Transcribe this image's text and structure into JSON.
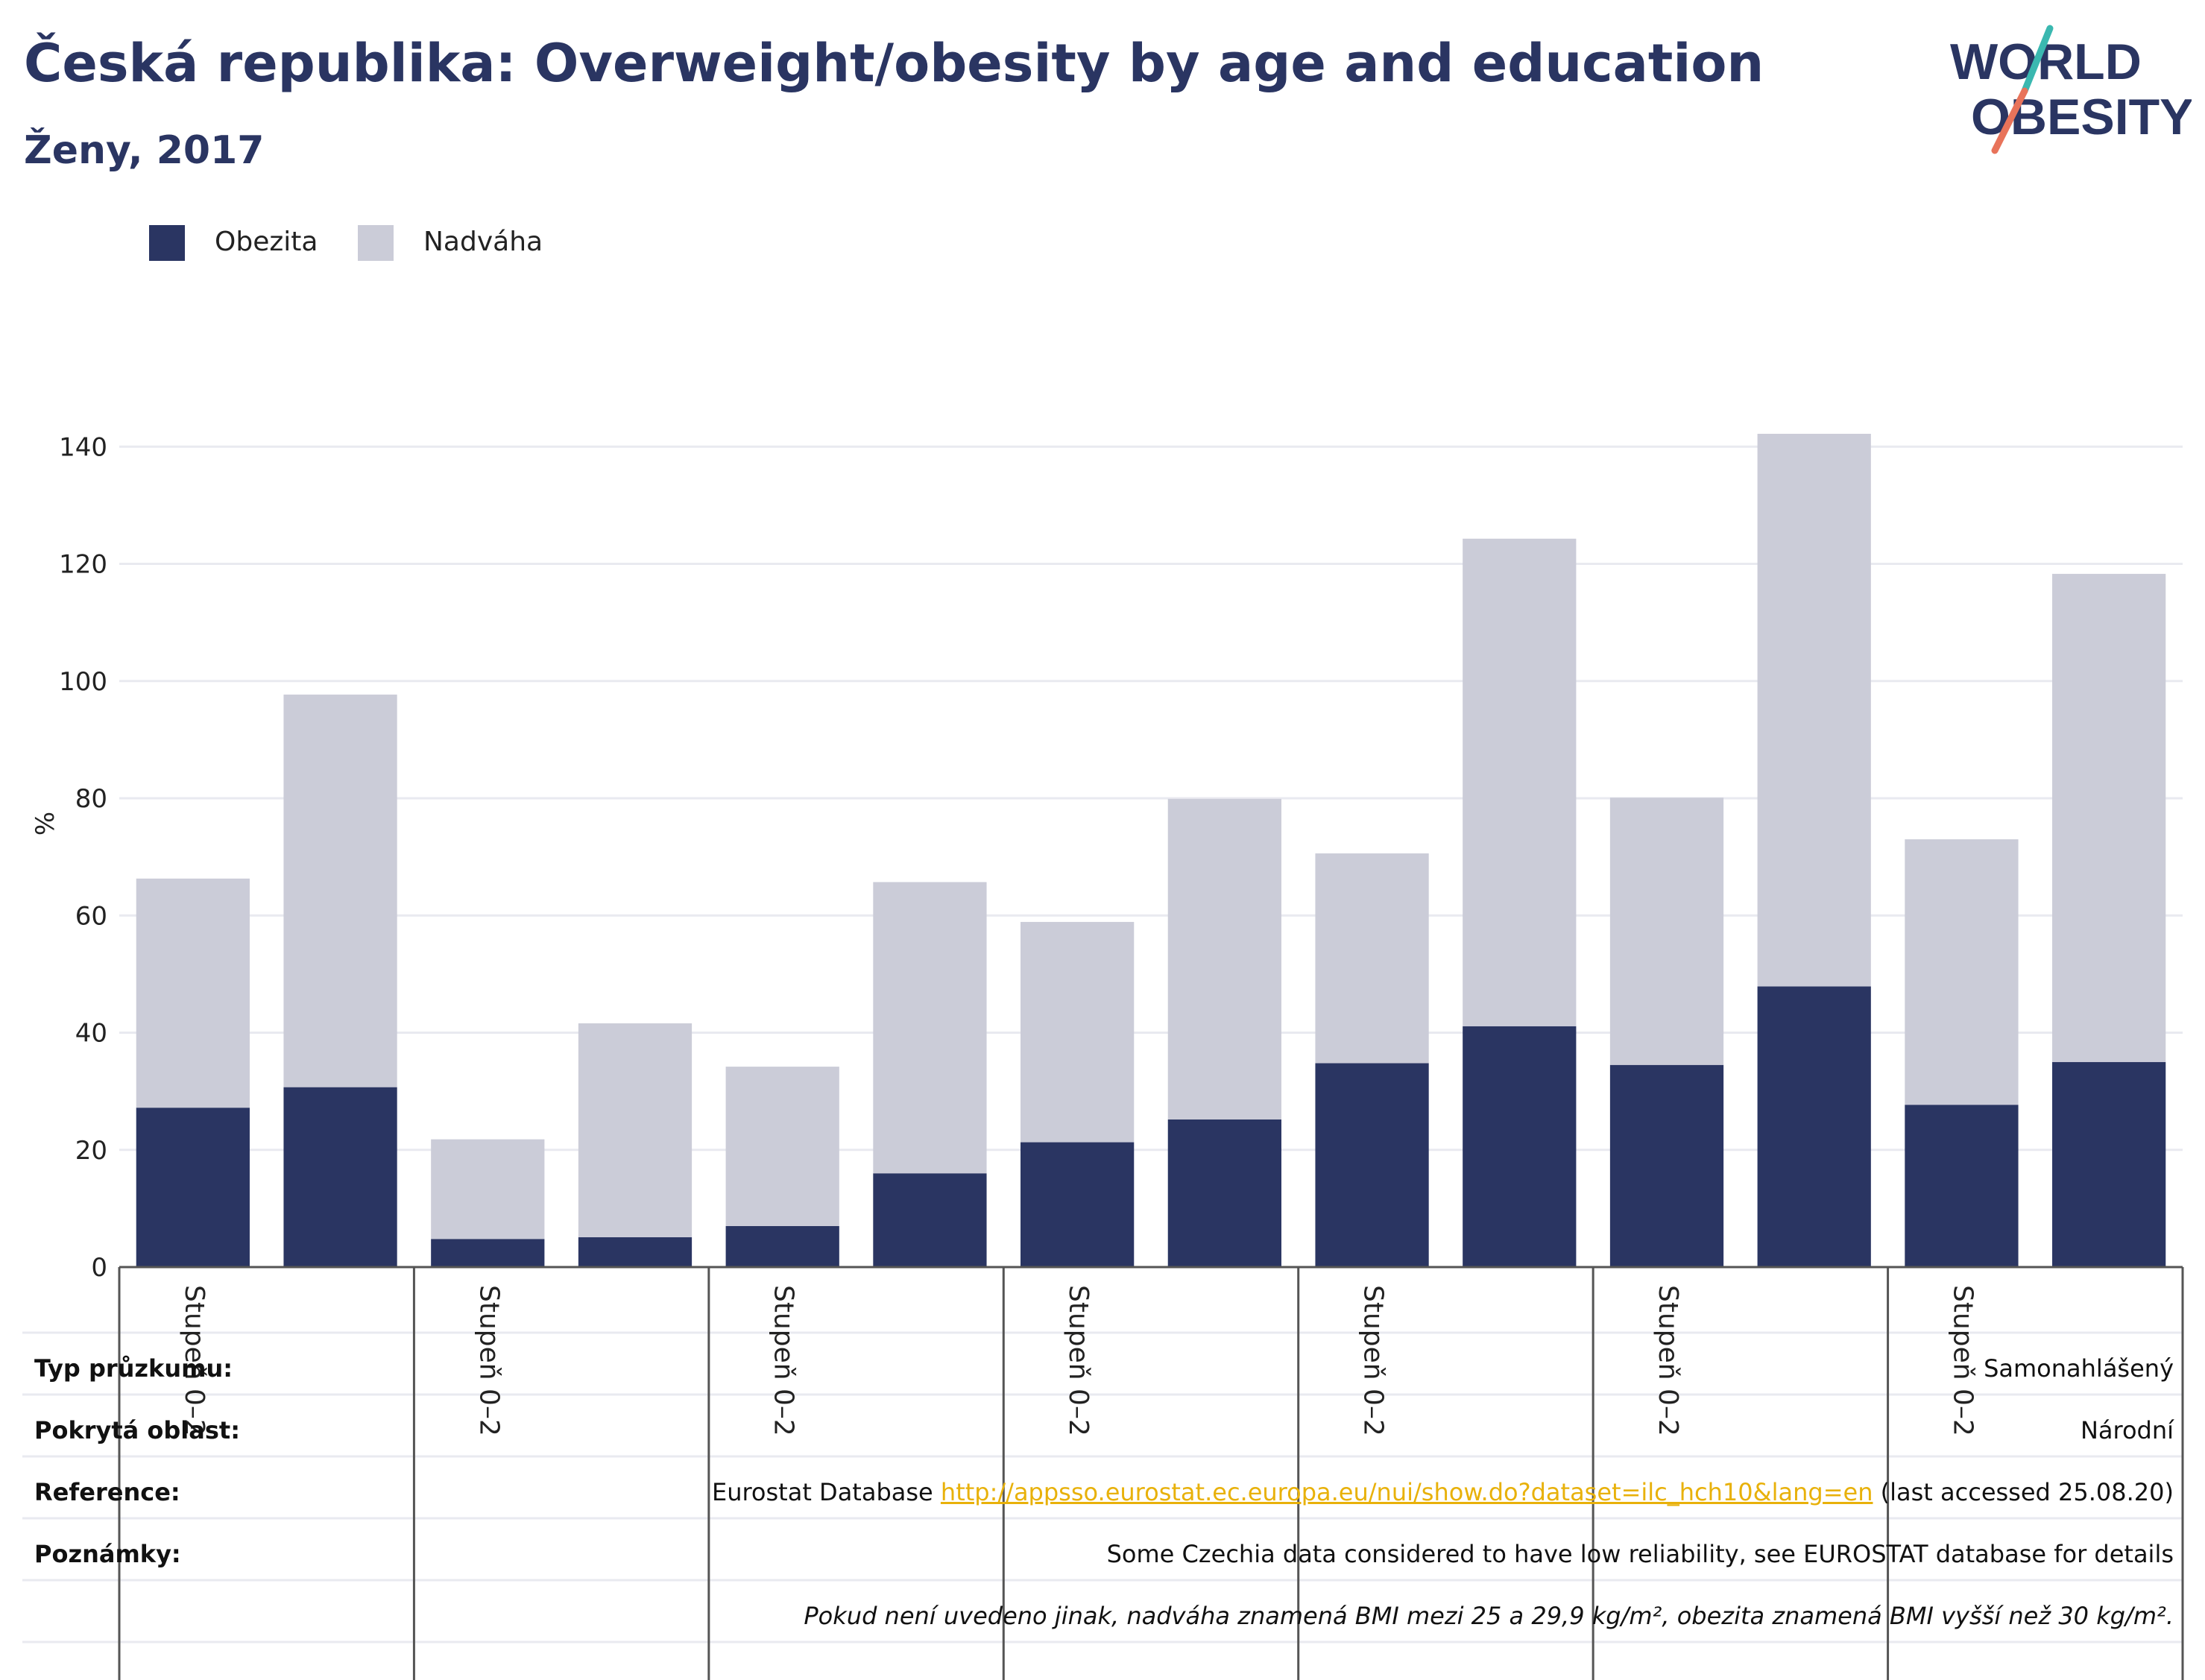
{
  "header": {
    "title": "Česká republika: Overweight/obesity by age and education",
    "subtitle": "Ženy, 2017"
  },
  "logo": {
    "line1": "WORLD",
    "line2": "OBESITY",
    "colors": {
      "text": "#2a3562",
      "slash_top": "#3ab8b0",
      "slash_bottom": "#e8735a"
    }
  },
  "colors": {
    "obesity": "#2a3562",
    "overweight": "#cbccd8",
    "grid": "#e9eaf0",
    "axis": "#555555"
  },
  "chart_data": {
    "type": "bar",
    "stacked": true,
    "ylabel": "%",
    "ylim": [
      0,
      145
    ],
    "yticks": [
      0,
      20,
      40,
      60,
      80,
      100,
      120,
      140
    ],
    "grid": true,
    "legend_position": "top-left",
    "group_labels": [
      "Stupeň 0–2",
      "Stupeň 0–2",
      "Stupeň 0–2",
      "Stupeň 0–2",
      "Stupeň 0–2",
      "Stupeň 0–2",
      "Stupeň 0–2"
    ],
    "series": [
      {
        "name": "Obezita",
        "values": [
          27.2,
          30.7,
          4.8,
          5.1,
          7.0,
          16.0,
          21.3,
          25.2,
          34.8,
          41.1,
          34.5,
          47.9,
          27.7,
          35.0
        ]
      },
      {
        "name": "Nadváha",
        "values": [
          39.1,
          67.0,
          17.0,
          36.5,
          27.2,
          49.7,
          37.6,
          54.7,
          35.8,
          83.2,
          45.6,
          94.3,
          45.3,
          83.3
        ]
      }
    ]
  },
  "meta": {
    "rows": [
      {
        "label": "Typ průzkumu:",
        "value": "Samonahlášený"
      },
      {
        "label": "Pokrytá oblast:",
        "value": "Národní"
      },
      {
        "label": "Reference:",
        "value_prefix": "Eurostat Database ",
        "link": "http://appsso.eurostat.ec.europa.eu/nui/show.do?dataset=ilc_hch10&lang=en",
        "value_suffix": " (last accessed 25.08.20)"
      },
      {
        "label": "Poznámky:",
        "value": "Some Czechia data considered to have low reliability, see EUROSTAT database for details"
      },
      {
        "label": "",
        "value": "Pokud není uvedeno jinak, nadváha znamená BMI mezi 25 a 29,9 kg/m², obezita znamená BMI vyšší než 30 kg/m²."
      }
    ]
  }
}
